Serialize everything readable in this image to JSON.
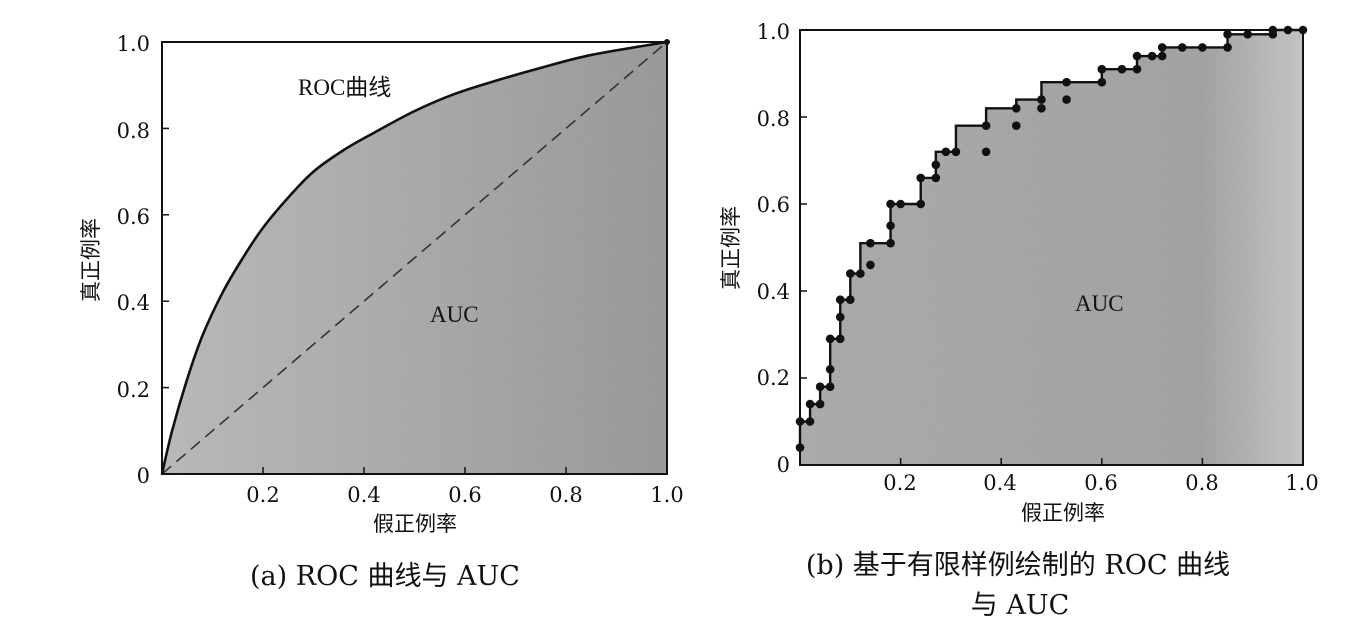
{
  "chart_data": [
    {
      "type": "area",
      "caption": "(a) ROC 曲线与 AUC",
      "xlabel": "假正例率",
      "ylabel": "真正例率",
      "xlim": [
        0,
        1
      ],
      "ylim": [
        0,
        1
      ],
      "xticks": [
        "0.2",
        "0.4",
        "0.6",
        "0.8",
        "1.0"
      ],
      "yticks": [
        "0",
        "0.2",
        "0.4",
        "0.6",
        "0.8",
        "1.0"
      ],
      "series": [
        {
          "name": "ROC曲线",
          "x": [
            0,
            0.02,
            0.05,
            0.08,
            0.12,
            0.16,
            0.2,
            0.25,
            0.3,
            0.36,
            0.42,
            0.5,
            0.58,
            0.66,
            0.75,
            0.85,
            1.0
          ],
          "y": [
            0,
            0.1,
            0.22,
            0.32,
            0.42,
            0.5,
            0.57,
            0.64,
            0.7,
            0.75,
            0.79,
            0.84,
            0.88,
            0.91,
            0.94,
            0.97,
            1.0
          ]
        }
      ],
      "diagonal": {
        "x": [
          0,
          1
        ],
        "y": [
          0,
          1
        ],
        "style": "dashed"
      },
      "annotations": [
        "ROC曲线",
        "AUC"
      ]
    },
    {
      "type": "line",
      "caption_line1": "(b) 基于有限样例绘制的 ROC 曲线",
      "caption_line2": "与 AUC",
      "xlabel": "假正例率",
      "ylabel": "真正例率",
      "xlim": [
        0,
        1
      ],
      "ylim": [
        0,
        1
      ],
      "xticks": [
        "0.2",
        "0.4",
        "0.6",
        "0.8",
        "1.0"
      ],
      "yticks": [
        "0",
        "0.2",
        "0.4",
        "0.6",
        "0.8",
        "1.0"
      ],
      "series": [
        {
          "x": [
            0,
            0,
            0.02,
            0.02,
            0.04,
            0.04,
            0.06,
            0.06,
            0.08,
            0.08,
            0.1,
            0.1,
            0.12,
            0.12,
            0.14,
            0.14,
            0.18,
            0.18,
            0.24,
            0.24,
            0.27,
            0.27,
            0.31,
            0.31,
            0.37,
            0.37,
            0.43,
            0.43,
            0.48,
            0.48,
            0.53,
            0.53,
            0.6,
            0.6,
            0.67,
            0.67,
            0.72,
            0.72,
            0.76,
            0.76,
            0.85,
            0.85,
            0.94,
            0.94,
            1.0
          ],
          "y": [
            0.04,
            0.1,
            0.1,
            0.14,
            0.14,
            0.18,
            0.18,
            0.29,
            0.29,
            0.38,
            0.38,
            0.44,
            0.44,
            0.51,
            0.51,
            0.51,
            0.51,
            0.6,
            0.6,
            0.66,
            0.66,
            0.72,
            0.72,
            0.78,
            0.78,
            0.82,
            0.82,
            0.84,
            0.84,
            0.88,
            0.88,
            0.88,
            0.88,
            0.91,
            0.91,
            0.94,
            0.94,
            0.96,
            0.96,
            0.96,
            0.96,
            0.99,
            0.99,
            1.0,
            1.0
          ],
          "markers": [
            [
              0,
              0.04
            ],
            [
              0,
              0.1
            ],
            [
              0.02,
              0.1
            ],
            [
              0.02,
              0.14
            ],
            [
              0.04,
              0.14
            ],
            [
              0.04,
              0.18
            ],
            [
              0.06,
              0.18
            ],
            [
              0.06,
              0.22
            ],
            [
              0.06,
              0.29
            ],
            [
              0.08,
              0.29
            ],
            [
              0.08,
              0.34
            ],
            [
              0.08,
              0.38
            ],
            [
              0.1,
              0.38
            ],
            [
              0.1,
              0.44
            ],
            [
              0.12,
              0.44
            ],
            [
              0.14,
              0.46
            ],
            [
              0.14,
              0.51
            ],
            [
              0.18,
              0.51
            ],
            [
              0.18,
              0.55
            ],
            [
              0.18,
              0.6
            ],
            [
              0.2,
              0.6
            ],
            [
              0.24,
              0.6
            ],
            [
              0.24,
              0.66
            ],
            [
              0.27,
              0.66
            ],
            [
              0.27,
              0.69
            ],
            [
              0.29,
              0.72
            ],
            [
              0.31,
              0.72
            ],
            [
              0.37,
              0.72
            ],
            [
              0.37,
              0.78
            ],
            [
              0.43,
              0.78
            ],
            [
              0.43,
              0.82
            ],
            [
              0.48,
              0.82
            ],
            [
              0.48,
              0.84
            ],
            [
              0.53,
              0.84
            ],
            [
              0.53,
              0.88
            ],
            [
              0.6,
              0.88
            ],
            [
              0.6,
              0.91
            ],
            [
              0.64,
              0.91
            ],
            [
              0.67,
              0.91
            ],
            [
              0.67,
              0.94
            ],
            [
              0.7,
              0.94
            ],
            [
              0.72,
              0.94
            ],
            [
              0.72,
              0.96
            ],
            [
              0.76,
              0.96
            ],
            [
              0.8,
              0.96
            ],
            [
              0.85,
              0.96
            ],
            [
              0.85,
              0.99
            ],
            [
              0.89,
              0.99
            ],
            [
              0.94,
              0.99
            ],
            [
              0.94,
              1.0
            ],
            [
              0.97,
              1.0
            ],
            [
              1.0,
              1.0
            ]
          ]
        }
      ],
      "annotations": [
        "AUC"
      ]
    }
  ]
}
